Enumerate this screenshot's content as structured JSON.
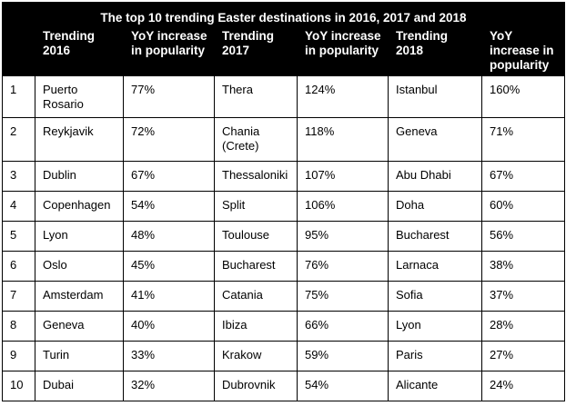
{
  "table": {
    "title": "The top 10 trending Easter destinations in 2016, 2017 and 2018",
    "headers": [
      "",
      "Trending 2016",
      "YoY increase in popularity",
      "Trending 2017",
      "YoY increase in popularity",
      "Trending 2018",
      "YoY increase in popularity"
    ],
    "rows": [
      [
        "1",
        "Puerto Rosario",
        "77%",
        "Thera",
        "124%",
        "Istanbul",
        "160%"
      ],
      [
        "2",
        "Reykjavik",
        "72%",
        "Chania (Crete)",
        "118%",
        "Geneva",
        "71%"
      ],
      [
        "3",
        "Dublin",
        "67%",
        "Thessaloniki",
        "107%",
        "Abu Dhabi",
        "67%"
      ],
      [
        "4",
        "Copenhagen",
        "54%",
        "Split",
        "106%",
        "Doha",
        "60%"
      ],
      [
        "5",
        "Lyon",
        "48%",
        "Toulouse",
        "95%",
        "Bucharest",
        "56%"
      ],
      [
        "6",
        "Oslo",
        "45%",
        "Bucharest",
        "76%",
        "Larnaca",
        "38%"
      ],
      [
        "7",
        "Amsterdam",
        "41%",
        "Catania",
        "75%",
        "Sofia",
        "37%"
      ],
      [
        "8",
        "Geneva",
        "40%",
        "Ibiza",
        "66%",
        "Lyon",
        "28%"
      ],
      [
        "9",
        "Turin",
        "33%",
        "Krakow",
        "59%",
        "Paris",
        "27%"
      ],
      [
        "10",
        "Dubai",
        "32%",
        "Dubrovnik",
        "54%",
        "Alicante",
        "24%"
      ]
    ]
  }
}
